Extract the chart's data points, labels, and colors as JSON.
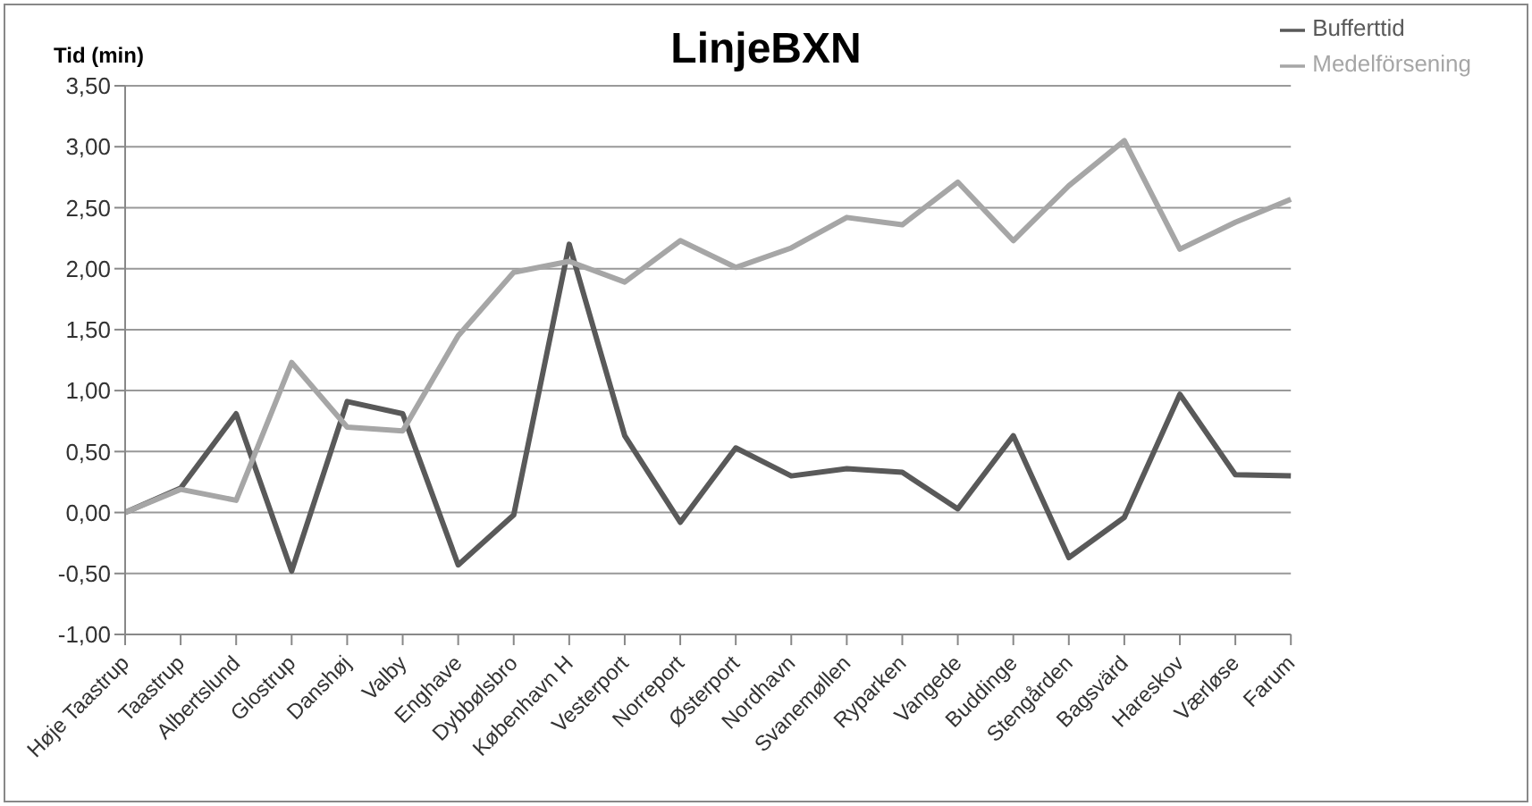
{
  "chart_data": {
    "type": "line",
    "title": "LinjeBXN",
    "ylabel": "Tid (min)",
    "categories": [
      "Høje Taastrup",
      "Taastrup",
      "Albertslund",
      "Glostrup",
      "Danshøj",
      "Valby",
      "Enghave",
      "Dybbølsbro",
      "København H",
      "Vesterport",
      "Norreport",
      "Østerport",
      "Nordhavn",
      "Svanemøllen",
      "Ryparken",
      "Vangede",
      "Buddinge",
      "Stengården",
      "Bagsvärd",
      "Hareskov",
      "Værløse",
      "Farum"
    ],
    "series": [
      {
        "name": "Bufferttid",
        "color": "#595959",
        "values": [
          0,
          0.2,
          0.81,
          -0.48,
          0.91,
          0.81,
          -0.43,
          -0.02,
          2.2,
          0.63,
          -0.08,
          0.53,
          0.3,
          0.36,
          0.33,
          0.03,
          0.63,
          -0.37,
          -0.04,
          0.97,
          0.31,
          0.3
        ]
      },
      {
        "name": "Medelförsening",
        "color": "#a6a6a6",
        "values": [
          0,
          0.19,
          0.1,
          1.23,
          0.7,
          0.67,
          1.45,
          1.97,
          2.06,
          1.89,
          2.23,
          2.01,
          2.17,
          2.42,
          2.36,
          2.71,
          2.23,
          2.68,
          3.05,
          2.16,
          2.38,
          2.57
        ]
      }
    ],
    "ylim": [
      -1,
      3.5
    ],
    "yticks": [
      {
        "value": -1,
        "label": "-1,00"
      },
      {
        "value": -0.5,
        "label": "-0,50"
      },
      {
        "value": 0,
        "label": "0,00"
      },
      {
        "value": 0.5,
        "label": "0,50"
      },
      {
        "value": 1,
        "label": "1,00"
      },
      {
        "value": 1.5,
        "label": "1,50"
      },
      {
        "value": 2,
        "label": "2,00"
      },
      {
        "value": 2.5,
        "label": "2,50"
      },
      {
        "value": 3,
        "label": "3,00"
      },
      {
        "value": 3.5,
        "label": "3,50"
      }
    ],
    "grid": "y",
    "legend": "top right",
    "marker": "none",
    "line_style": "solid"
  }
}
